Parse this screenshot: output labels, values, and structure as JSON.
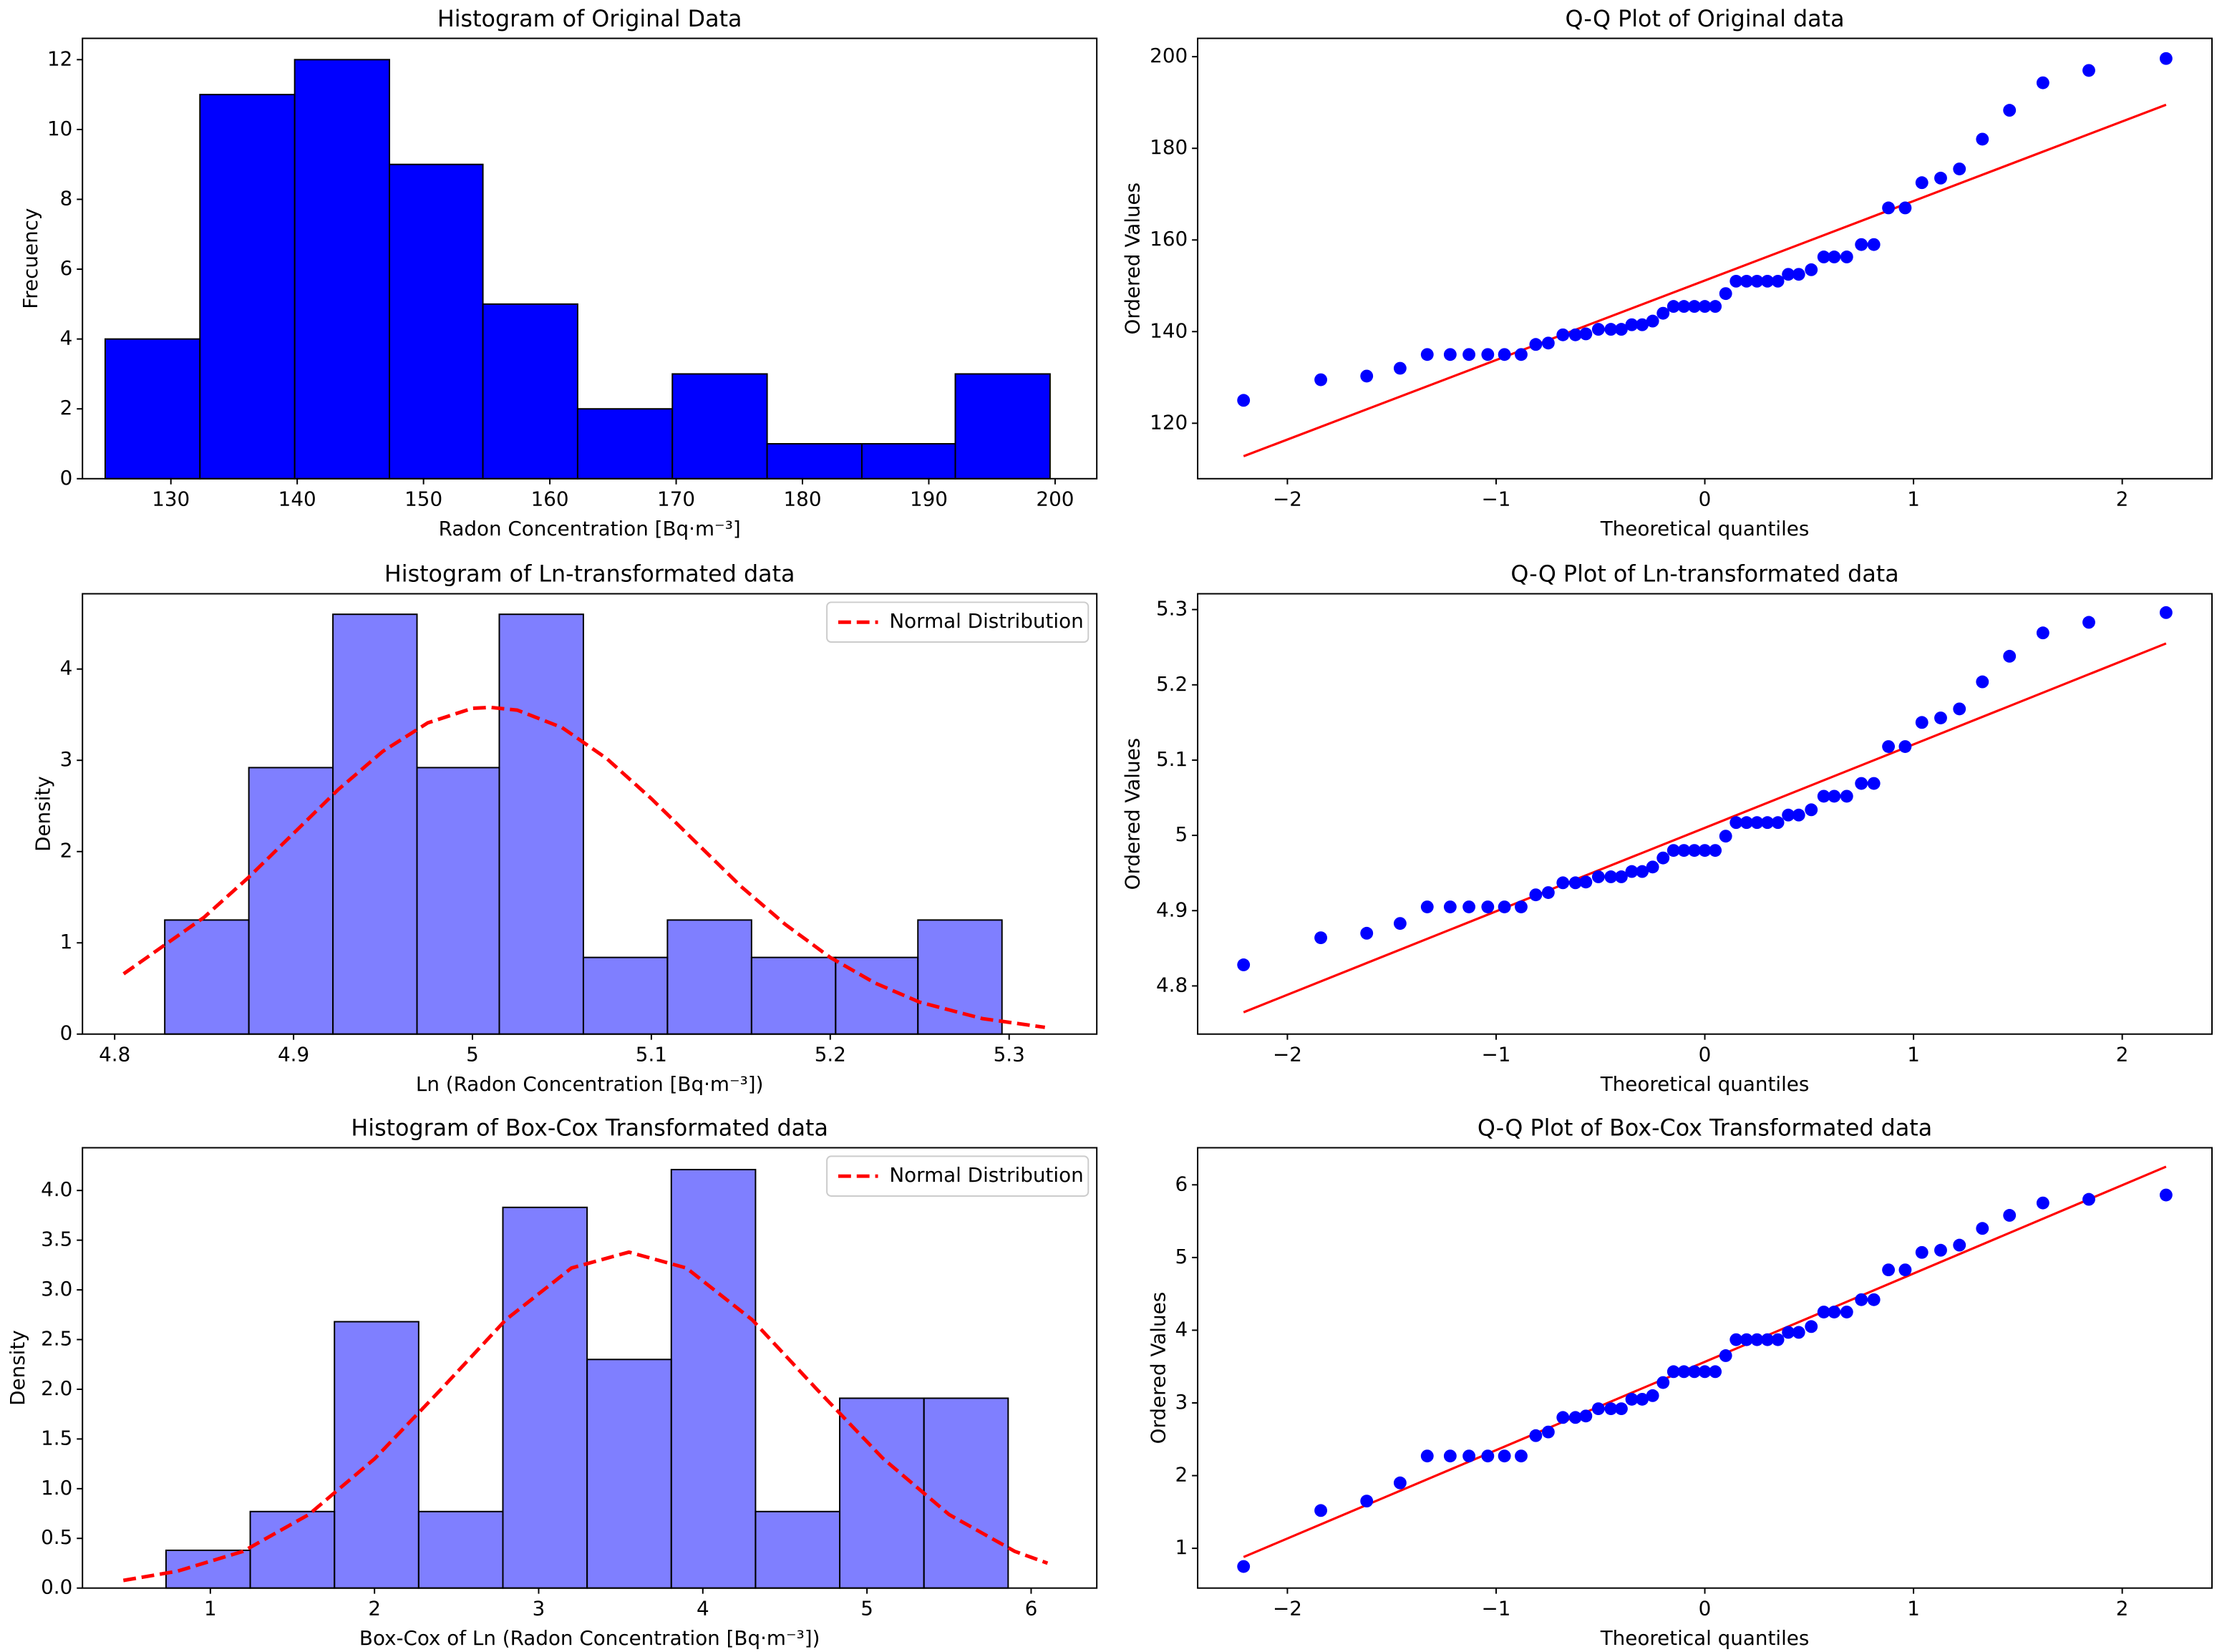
{
  "chart_data": [
    {
      "type": "histogram",
      "title": "Histogram of Original Data",
      "x_label": "Radon Concentration [Bq·m⁻³]",
      "y_label": "Frecuency",
      "bins": [
        124.8,
        132.3,
        139.8,
        147.3,
        154.7,
        162.2,
        169.7,
        177.2,
        184.7,
        192.1,
        199.6
      ],
      "values": [
        4,
        11,
        12,
        9,
        5,
        2,
        3,
        1,
        1,
        3
      ],
      "color": "#0000ff",
      "alpha": 1,
      "edgecolor": "#000000",
      "xlim": [
        123.0,
        203.3
      ],
      "xticks": [
        130,
        140,
        150,
        160,
        170,
        180,
        190,
        200
      ],
      "ylim": [
        0,
        12.61
      ],
      "yticks": [
        0,
        2,
        4,
        6,
        8,
        10,
        12
      ]
    },
    {
      "type": "scatter",
      "title": "Q-Q Plot of Original data",
      "x_label": "Theoretical quantiles",
      "y_label": "Ordered Values",
      "x": [
        -2.21,
        -1.84,
        -1.62,
        -1.46,
        -1.33,
        -1.22,
        -1.13,
        -1.04,
        -0.96,
        -0.88,
        -0.81,
        -0.75,
        -0.68,
        -0.62,
        -0.57,
        -0.51,
        -0.45,
        -0.4,
        -0.35,
        -0.3,
        -0.25,
        -0.2,
        -0.15,
        -0.1,
        -0.05,
        0,
        0.05,
        0.1,
        0.15,
        0.2,
        0.25,
        0.3,
        0.35,
        0.4,
        0.45,
        0.51,
        0.57,
        0.62,
        0.68,
        0.75,
        0.81,
        0.88,
        0.96,
        1.04,
        1.13,
        1.22,
        1.33,
        1.46,
        1.62,
        1.84,
        2.21
      ],
      "values": [
        125,
        129.5,
        130.3,
        132,
        135,
        135,
        135,
        135,
        135,
        135,
        137.2,
        137.5,
        139.3,
        139.3,
        139.5,
        140.5,
        140.5,
        140.5,
        141.5,
        141.5,
        142.3,
        144,
        145.5,
        145.5,
        145.5,
        145.5,
        145.5,
        148.3,
        151,
        151,
        151,
        151,
        151,
        152.5,
        152.5,
        153.5,
        156.3,
        156.3,
        156.3,
        159,
        159,
        167,
        167,
        172.5,
        173.5,
        175.5,
        182,
        188.3,
        194.3,
        197,
        199.6
      ],
      "color": "#0000ff",
      "fit_line": {
        "x": [
          -2.21,
          2.21
        ],
        "values": [
          112.8,
          189.5
        ],
        "color": "#ff0000"
      },
      "xlim": [
        -2.43,
        2.43
      ],
      "xticks": [
        {
          "value": -2,
          "label": "−2"
        },
        {
          "value": -1,
          "label": "−1"
        },
        0,
        1,
        2
      ],
      "ylim": [
        107.9,
        204
      ],
      "yticks": [
        120,
        140,
        160,
        180,
        200
      ]
    },
    {
      "type": "histogram",
      "title": "Histogram of Ln-transformated data",
      "x_label": "Ln (Radon Concentration [Bq·m⁻³])",
      "y_label": "Density",
      "bins": [
        4.828,
        4.875,
        4.922,
        4.969,
        5.015,
        5.062,
        5.109,
        5.156,
        5.203,
        5.249,
        5.296
      ],
      "values": [
        1.25,
        2.92,
        4.6,
        2.92,
        4.6,
        0.84,
        1.25,
        0.84,
        0.84,
        1.25
      ],
      "color": "#0000ff",
      "alpha": 0.5,
      "edgecolor": "#000000",
      "series": [
        {
          "name": "Normal Distribution",
          "color": "#ff0000",
          "x": [
            4.805,
            4.85,
            4.875,
            4.9,
            4.925,
            4.95,
            4.975,
            5.0,
            5.01,
            5.025,
            5.05,
            5.075,
            5.1,
            5.125,
            5.15,
            5.175,
            5.2,
            5.225,
            5.25,
            5.285,
            5.32
          ],
          "values": [
            0.66,
            1.28,
            1.72,
            2.2,
            2.68,
            3.1,
            3.41,
            3.57,
            3.58,
            3.55,
            3.36,
            3.02,
            2.58,
            2.1,
            1.62,
            1.2,
            0.84,
            0.56,
            0.35,
            0.17,
            0.074
          ]
        }
      ],
      "legend": "upper right",
      "xlim": [
        4.782,
        5.349
      ],
      "xticks": [
        4.8,
        4.9,
        5.0,
        5.1,
        5.2,
        5.3
      ],
      "ylim": [
        0,
        4.825
      ],
      "yticks": [
        0,
        1,
        2,
        3,
        4
      ]
    },
    {
      "type": "scatter",
      "title": "Q-Q Plot of Ln-transformated data",
      "x_label": "Theoretical quantiles",
      "y_label": "Ordered Values",
      "x": [
        -2.21,
        -1.84,
        -1.62,
        -1.46,
        -1.33,
        -1.22,
        -1.13,
        -1.04,
        -0.96,
        -0.88,
        -0.81,
        -0.75,
        -0.68,
        -0.62,
        -0.57,
        -0.51,
        -0.45,
        -0.4,
        -0.35,
        -0.3,
        -0.25,
        -0.2,
        -0.15,
        -0.1,
        -0.05,
        0,
        0.05,
        0.1,
        0.15,
        0.2,
        0.25,
        0.3,
        0.35,
        0.4,
        0.45,
        0.51,
        0.57,
        0.62,
        0.68,
        0.75,
        0.81,
        0.88,
        0.96,
        1.04,
        1.13,
        1.22,
        1.33,
        1.46,
        1.62,
        1.84,
        2.21
      ],
      "values": [
        4.828,
        4.864,
        4.87,
        4.883,
        4.905,
        4.905,
        4.905,
        4.905,
        4.905,
        4.905,
        4.921,
        4.924,
        4.937,
        4.937,
        4.938,
        4.945,
        4.945,
        4.945,
        4.952,
        4.952,
        4.958,
        4.97,
        4.98,
        4.98,
        4.98,
        4.98,
        4.98,
        4.999,
        5.017,
        5.017,
        5.017,
        5.017,
        5.017,
        5.027,
        5.027,
        5.034,
        5.052,
        5.052,
        5.052,
        5.069,
        5.069,
        5.118,
        5.118,
        5.15,
        5.156,
        5.168,
        5.204,
        5.238,
        5.269,
        5.283,
        5.296
      ],
      "color": "#0000ff",
      "fit_line": {
        "x": [
          -2.21,
          2.21
        ],
        "values": [
          4.765,
          5.255
        ],
        "color": "#ff0000"
      },
      "xlim": [
        -2.43,
        2.43
      ],
      "xticks": [
        {
          "value": -2,
          "label": "−2"
        },
        {
          "value": -1,
          "label": "−1"
        },
        0,
        1,
        2
      ],
      "ylim": [
        4.736,
        5.321
      ],
      "yticks": [
        4.8,
        4.9,
        5.0,
        5.1,
        5.2,
        5.3
      ]
    },
    {
      "type": "histogram",
      "title": "Histogram of Box-Cox Transformated data",
      "x_label": "Box-Cox of Ln (Radon Concentration [Bq·m⁻³])",
      "y_label": "Density",
      "bins": [
        0.73,
        1.243,
        1.756,
        2.269,
        2.782,
        3.295,
        3.808,
        4.321,
        4.834,
        5.347,
        5.86
      ],
      "values": [
        0.38,
        0.77,
        2.68,
        0.77,
        3.83,
        2.3,
        4.21,
        0.77,
        1.91,
        1.91
      ],
      "color": "#0000ff",
      "alpha": 0.5,
      "edgecolor": "#000000",
      "series": [
        {
          "name": "Normal Distribution",
          "color": "#ff0000",
          "x": [
            0.47,
            0.8,
            1.2,
            1.6,
            2.0,
            2.4,
            2.8,
            3.2,
            3.55,
            3.9,
            4.3,
            4.7,
            5.1,
            5.5,
            5.9,
            6.1
          ],
          "values": [
            0.077,
            0.17,
            0.37,
            0.74,
            1.3,
            1.99,
            2.7,
            3.22,
            3.38,
            3.22,
            2.7,
            1.99,
            1.3,
            0.74,
            0.37,
            0.25
          ]
        }
      ],
      "legend": "upper right",
      "xlim": [
        0.221,
        6.4
      ],
      "xticks": [
        1,
        2,
        3,
        4,
        5,
        6
      ],
      "ylim": [
        0,
        4.43
      ],
      "yticks": [
        {
          "value": 0,
          "label": "0.0"
        },
        0.5,
        {
          "value": 1,
          "label": "1.0"
        },
        1.5,
        {
          "value": 2,
          "label": "2.0"
        },
        2.5,
        {
          "value": 3,
          "label": "3.0"
        },
        3.5,
        {
          "value": 4,
          "label": "4.0"
        }
      ]
    },
    {
      "type": "scatter",
      "title": "Q-Q Plot of Box-Cox Transformated data",
      "x_label": "Theoretical quantiles",
      "y_label": "Ordered Values",
      "x": [
        -2.21,
        -1.84,
        -1.62,
        -1.46,
        -1.33,
        -1.22,
        -1.13,
        -1.04,
        -0.96,
        -0.88,
        -0.81,
        -0.75,
        -0.68,
        -0.62,
        -0.57,
        -0.51,
        -0.45,
        -0.4,
        -0.35,
        -0.3,
        -0.25,
        -0.2,
        -0.15,
        -0.1,
        -0.05,
        0,
        0.05,
        0.1,
        0.15,
        0.2,
        0.25,
        0.3,
        0.35,
        0.4,
        0.45,
        0.51,
        0.57,
        0.62,
        0.68,
        0.75,
        0.81,
        0.88,
        0.96,
        1.04,
        1.13,
        1.22,
        1.33,
        1.46,
        1.62,
        1.84,
        2.21
      ],
      "values": [
        0.75,
        1.52,
        1.65,
        1.9,
        2.27,
        2.27,
        2.27,
        2.27,
        2.27,
        2.27,
        2.55,
        2.6,
        2.8,
        2.8,
        2.82,
        2.92,
        2.92,
        2.92,
        3.05,
        3.05,
        3.1,
        3.28,
        3.43,
        3.43,
        3.43,
        3.43,
        3.43,
        3.65,
        3.87,
        3.87,
        3.87,
        3.87,
        3.87,
        3.97,
        3.97,
        4.05,
        4.25,
        4.25,
        4.25,
        4.42,
        4.42,
        4.83,
        4.83,
        5.07,
        5.1,
        5.17,
        5.4,
        5.58,
        5.75,
        5.8,
        5.86
      ],
      "color": "#0000ff",
      "fit_line": {
        "x": [
          -2.21,
          2.21
        ],
        "values": [
          0.88,
          6.25
        ],
        "color": "#ff0000"
      },
      "xlim": [
        -2.43,
        2.43
      ],
      "xticks": [
        {
          "value": -2,
          "label": "−2"
        },
        {
          "value": -1,
          "label": "−1"
        },
        0,
        1,
        2
      ],
      "ylim": [
        0.453,
        6.51
      ],
      "yticks": [
        1,
        2,
        3,
        4,
        5,
        6
      ]
    }
  ]
}
